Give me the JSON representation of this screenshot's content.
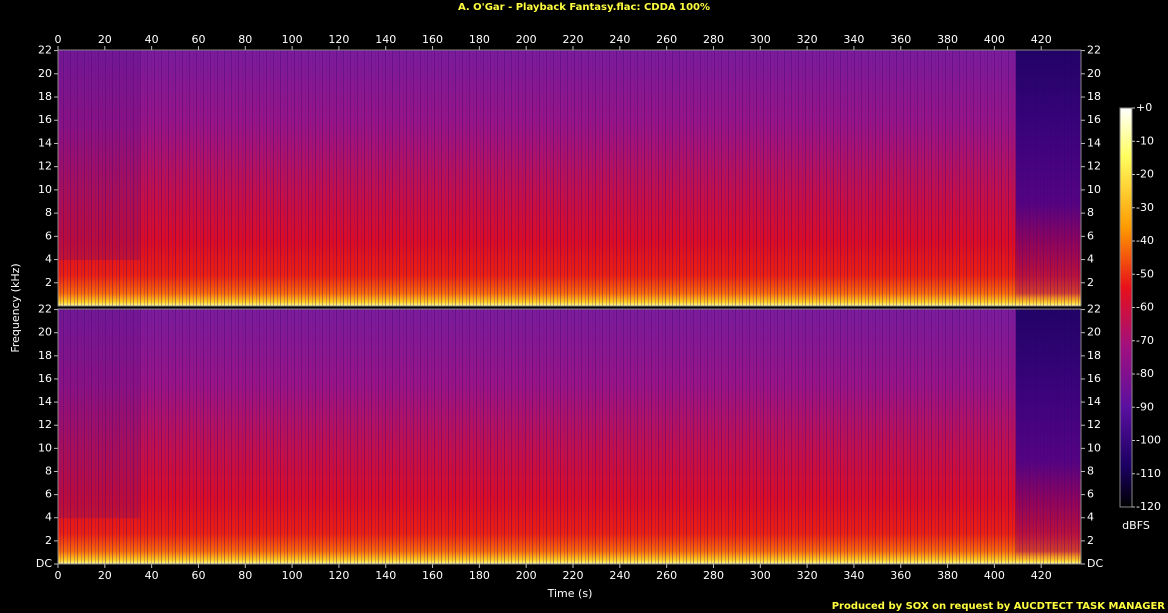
{
  "chart_data": {
    "type": "spectrogram",
    "title": "A. O'Gar - Playback Fantasy.flac: CDDA 100%",
    "x_label": "Time (s)",
    "y_label": "Frequency (kHz)",
    "xlim": [
      0,
      437
    ],
    "xticks": [
      0,
      20,
      40,
      60,
      80,
      100,
      120,
      140,
      160,
      180,
      200,
      220,
      240,
      260,
      280,
      300,
      320,
      340,
      360,
      380,
      400,
      420
    ],
    "ylim": [
      0,
      22.05
    ],
    "yticks": [
      {
        "value": 0,
        "label": "DC"
      },
      2,
      4,
      6,
      8,
      10,
      12,
      14,
      16,
      18,
      20,
      22
    ],
    "colorbar": {
      "label": "dBFS",
      "lim": [
        -120,
        0
      ],
      "ticks": [
        {
          "value": 0,
          "label": "+0"
        },
        -10,
        -20,
        -30,
        -40,
        -50,
        -60,
        -70,
        -80,
        -90,
        -100,
        -110,
        -120
      ]
    },
    "footer": "Produced by SOX on request by AUCDTECT TASK MANAGER"
  }
}
